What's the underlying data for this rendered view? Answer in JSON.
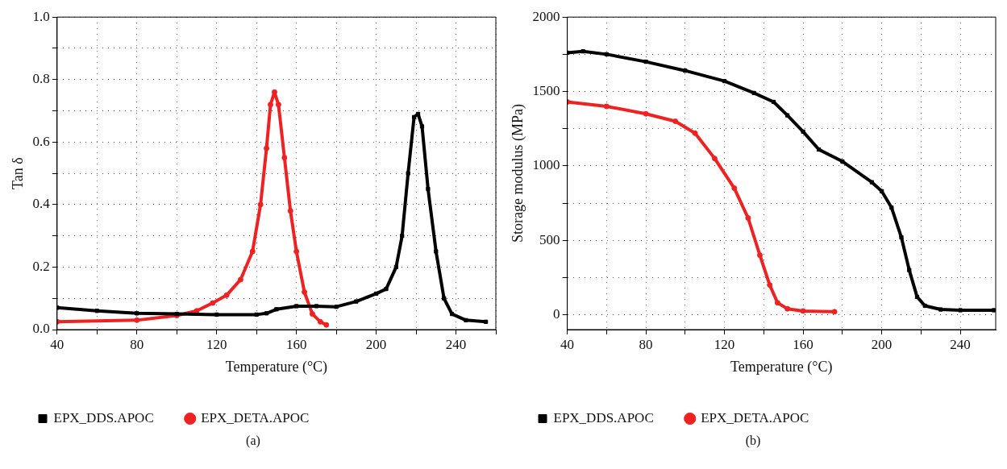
{
  "chart_data": [
    {
      "type": "line",
      "xlabel": "Temperature (°C)",
      "ylabel": "Tan δ",
      "legend": "bottom",
      "grid": true,
      "line_style": "solid",
      "annotations": [
        "(a)"
      ],
      "xlim": [
        40,
        260
      ],
      "xticks": [
        40,
        {
          "value": 60,
          "label": null
        },
        80,
        {
          "value": 100,
          "label": null
        },
        120,
        {
          "value": 140,
          "label": null
        },
        160,
        {
          "value": 180,
          "label": null
        },
        200,
        {
          "value": 220,
          "label": null
        },
        240,
        {
          "value": 260,
          "label": null
        }
      ],
      "ylim": [
        0,
        1
      ],
      "yticks": [
        "0.0",
        {
          "value": 0.1,
          "label": null
        },
        0.2,
        {
          "value": 0.3,
          "label": null
        },
        0.4,
        {
          "value": 0.5,
          "label": null
        },
        0.6,
        {
          "value": 0.7,
          "label": null
        },
        0.8,
        {
          "value": 0.9,
          "label": null
        },
        "1.0"
      ],
      "series": [
        {
          "name": "EPX_DDS.APOC",
          "color": "#000000",
          "marker": "square",
          "x": [
            40,
            60,
            80,
            100,
            120,
            140,
            145,
            150,
            160,
            170,
            180,
            190,
            200,
            205,
            210,
            213,
            216,
            219,
            221,
            223,
            226,
            230,
            234,
            238,
            245,
            255
          ],
          "values": [
            0.07,
            0.06,
            0.052,
            0.05,
            0.048,
            0.048,
            0.052,
            0.065,
            0.075,
            0.075,
            0.073,
            0.09,
            0.115,
            0.13,
            0.2,
            0.3,
            0.5,
            0.68,
            0.69,
            0.65,
            0.45,
            0.25,
            0.1,
            0.05,
            0.03,
            0.025
          ]
        },
        {
          "name": "EPX_DETA.APOC",
          "color": "#ee2222",
          "marker": "circle",
          "x": [
            40,
            80,
            100,
            110,
            118,
            125,
            132,
            138,
            142,
            145,
            147,
            149,
            151,
            154,
            157,
            160,
            164,
            168,
            172,
            175
          ],
          "values": [
            0.025,
            0.03,
            0.045,
            0.06,
            0.085,
            0.11,
            0.16,
            0.25,
            0.4,
            0.58,
            0.72,
            0.76,
            0.72,
            0.55,
            0.38,
            0.25,
            0.12,
            0.05,
            0.025,
            0.015
          ]
        }
      ]
    },
    {
      "type": "line",
      "xlabel": "Temperature (°C)",
      "ylabel": "Storage modulus (MPa)",
      "legend": "bottom",
      "grid": true,
      "line_style": "solid",
      "annotations": [
        "(b)"
      ],
      "xlim": [
        40,
        258
      ],
      "xticks": [
        40,
        {
          "value": 60,
          "label": null
        },
        80,
        {
          "value": 100,
          "label": null
        },
        120,
        {
          "value": 140,
          "label": null
        },
        160,
        {
          "value": 180,
          "label": null
        },
        200,
        {
          "value": 220,
          "label": null
        },
        240
      ],
      "ylim": [
        -100,
        2000
      ],
      "yticks": [
        0,
        {
          "value": 250,
          "label": null
        },
        500,
        {
          "value": 750,
          "label": null
        },
        1000,
        {
          "value": 1250,
          "label": null
        },
        1500,
        {
          "value": 1750,
          "label": null
        },
        2000
      ],
      "series": [
        {
          "name": "EPX_DDS.APOC",
          "color": "#000000",
          "marker": "square",
          "x": [
            40,
            48,
            60,
            80,
            100,
            120,
            135,
            145,
            152,
            160,
            168,
            180,
            195,
            200,
            205,
            210,
            214,
            218,
            222,
            230,
            240,
            257
          ],
          "values": [
            1760,
            1770,
            1750,
            1700,
            1640,
            1570,
            1490,
            1430,
            1340,
            1230,
            1110,
            1030,
            890,
            830,
            720,
            520,
            300,
            120,
            60,
            35,
            30,
            30
          ]
        },
        {
          "name": "EPX_DETA.APOC",
          "color": "#ee2222",
          "marker": "circle",
          "x": [
            40,
            60,
            80,
            95,
            105,
            115,
            125,
            132,
            138,
            143,
            147,
            152,
            160,
            176
          ],
          "values": [
            1430,
            1400,
            1350,
            1300,
            1220,
            1050,
            850,
            650,
            400,
            200,
            80,
            40,
            25,
            20
          ]
        }
      ]
    }
  ]
}
